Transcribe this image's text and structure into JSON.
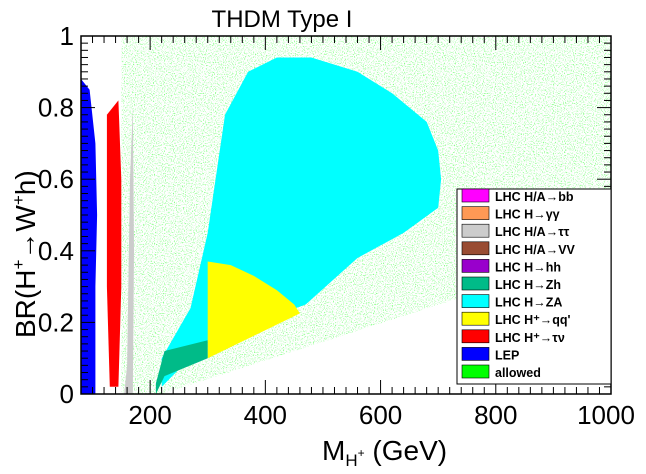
{
  "chart_data": {
    "type": "scatter",
    "title": "THDM Type I",
    "xlabel": {
      "base": "M",
      "sub": "H",
      "subsup": "+",
      "rest": " (GeV)"
    },
    "ylabel": {
      "pre": "BR(H",
      "sup1": "+",
      "mid": "→W",
      "sup2": "+",
      "post": "h)"
    },
    "xlim": [
      80,
      1000
    ],
    "ylim": [
      0,
      1
    ],
    "xticks": [
      200,
      400,
      600,
      800,
      1000
    ],
    "yticks": [
      0,
      0.2,
      0.4,
      0.6,
      0.8,
      1
    ],
    "ytick_labels": [
      "0",
      "0.2",
      "0.4",
      "0.6",
      "0.8",
      "1"
    ],
    "legend_position": "right",
    "legend": [
      {
        "text": "LHC H/A→bb",
        "color": "#ff00ff"
      },
      {
        "text": "LHC H→γγ",
        "color": "#ff9955"
      },
      {
        "text": "LHC H/A→ττ",
        "color": "#cccccc"
      },
      {
        "text": "LHC H/A→VV",
        "color": "#994c33"
      },
      {
        "text": "LHC H→hh",
        "color": "#9900cc"
      },
      {
        "text": "LHC H→Zh",
        "color": "#00bb88"
      },
      {
        "text": "LHC H→ZA",
        "color": "#00ffff"
      },
      {
        "text": "LHC H⁺→qq'",
        "color": "#ffff00"
      },
      {
        "text": "LHC H⁺→τν",
        "color": "#ff0000"
      },
      {
        "text": "LEP",
        "color": "#0000ff"
      },
      {
        "text": "allowed",
        "color": "#00ff00"
      }
    ],
    "regions": [
      {
        "name": "allowed",
        "color": "#00ff00",
        "points": [
          [
            150,
            1
          ],
          [
            1000,
            1
          ],
          [
            1000,
            0.42
          ],
          [
            900,
            0.35
          ],
          [
            740,
            0.27
          ],
          [
            220,
            0
          ],
          [
            150,
            0
          ]
        ]
      },
      {
        "name": "LHC H→ZA",
        "color": "#00ffff",
        "points": [
          [
            220,
            0.1
          ],
          [
            270,
            0.24
          ],
          [
            300,
            0.45
          ],
          [
            330,
            0.78
          ],
          [
            370,
            0.9
          ],
          [
            420,
            0.94
          ],
          [
            480,
            0.94
          ],
          [
            560,
            0.9
          ],
          [
            620,
            0.84
          ],
          [
            680,
            0.76
          ],
          [
            700,
            0.68
          ],
          [
            705,
            0.6
          ],
          [
            700,
            0.52
          ],
          [
            640,
            0.45
          ],
          [
            560,
            0.38
          ],
          [
            470,
            0.25
          ],
          [
            300,
            0.15
          ],
          [
            220,
            0.02
          ]
        ]
      },
      {
        "name": "LHC H⁺→qq'",
        "color": "#ffff00",
        "points": [
          [
            300,
            0.37
          ],
          [
            340,
            0.36
          ],
          [
            380,
            0.33
          ],
          [
            420,
            0.29
          ],
          [
            450,
            0.25
          ],
          [
            460,
            0.225
          ],
          [
            300,
            0.1
          ]
        ]
      },
      {
        "name": "LEP",
        "color": "#0000ff",
        "points": [
          [
            80,
            0
          ],
          [
            80,
            0.88
          ],
          [
            95,
            0.85
          ],
          [
            105,
            0.7
          ],
          [
            108,
            0.5
          ],
          [
            105,
            0.3
          ],
          [
            105,
            0
          ]
        ]
      },
      {
        "name": "LHC H⁺→τν",
        "color": "#ff0000",
        "points": [
          [
            125,
            0.78
          ],
          [
            145,
            0.82
          ],
          [
            150,
            0.6
          ],
          [
            150,
            0.3
          ],
          [
            145,
            0.02
          ],
          [
            130,
            0.02
          ],
          [
            125,
            0.3
          ]
        ]
      },
      {
        "name": "LHC H/A→ττ",
        "color": "#cccccc",
        "points": [
          [
            155,
            0
          ],
          [
            160,
            0.08
          ],
          [
            165,
            0.6
          ],
          [
            170,
            0.8
          ],
          [
            172,
            0.4
          ],
          [
            170,
            0
          ]
        ]
      },
      {
        "name": "LHC H→Zh",
        "color": "#00bb88",
        "points": [
          [
            210,
            0
          ],
          [
            225,
            0.05
          ],
          [
            300,
            0.1
          ],
          [
            300,
            0.15
          ],
          [
            225,
            0.12
          ],
          [
            210,
            0.03
          ]
        ]
      }
    ]
  }
}
